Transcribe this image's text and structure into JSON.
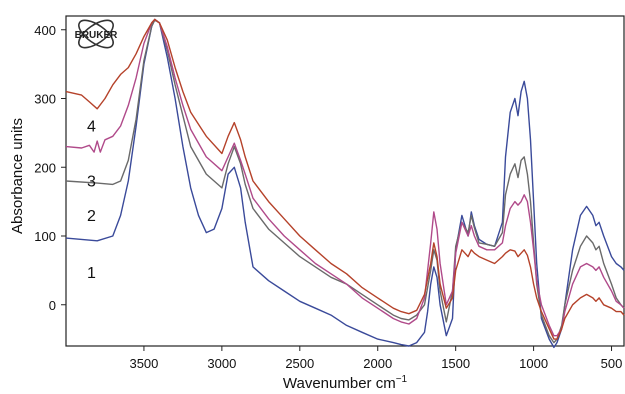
{
  "chart_data": {
    "type": "line",
    "title": "",
    "xlabel": "Wavenumber cm",
    "xlabel_sup": "−1",
    "ylabel": "Absorbance units",
    "xlim": [
      4000,
      420
    ],
    "ylim": [
      -60,
      420
    ],
    "x_reversed": true,
    "grid": false,
    "legend": "inline number labels at left",
    "xticks": [
      3500,
      3000,
      2500,
      2000,
      1500,
      1000,
      500
    ],
    "yticks": [
      0,
      100,
      200,
      300,
      400
    ],
    "logo": {
      "text": "BRUKER"
    },
    "series": [
      {
        "name": "1",
        "color": "#3a4a9a",
        "x": [
          4000,
          3800,
          3700,
          3650,
          3600,
          3550,
          3500,
          3450,
          3430,
          3400,
          3350,
          3300,
          3250,
          3200,
          3150,
          3100,
          3050,
          3000,
          2960,
          2920,
          2880,
          2850,
          2800,
          2700,
          2600,
          2500,
          2400,
          2300,
          2200,
          2100,
          2000,
          1900,
          1850,
          1800,
          1750,
          1700,
          1680,
          1660,
          1640,
          1620,
          1600,
          1560,
          1520,
          1500,
          1460,
          1420,
          1400,
          1380,
          1350,
          1300,
          1250,
          1200,
          1180,
          1150,
          1120,
          1100,
          1080,
          1060,
          1040,
          1020,
          1000,
          980,
          950,
          900,
          870,
          850,
          820,
          800,
          750,
          700,
          660,
          620,
          600,
          580,
          550,
          500,
          470,
          440,
          420
        ],
        "y": [
          97,
          93,
          100,
          130,
          180,
          260,
          350,
          405,
          415,
          410,
          360,
          300,
          230,
          170,
          130,
          105,
          110,
          140,
          190,
          200,
          170,
          120,
          55,
          35,
          20,
          5,
          -5,
          -15,
          -30,
          -40,
          -50,
          -55,
          -58,
          -60,
          -55,
          -40,
          -10,
          30,
          55,
          40,
          0,
          -45,
          -20,
          80,
          130,
          100,
          135,
          115,
          95,
          88,
          85,
          120,
          215,
          280,
          300,
          275,
          310,
          325,
          300,
          240,
          150,
          60,
          -20,
          -50,
          -62,
          -55,
          -35,
          0,
          80,
          130,
          143,
          130,
          115,
          120,
          100,
          70,
          60,
          55,
          50
        ]
      },
      {
        "name": "2",
        "color": "#6a6a6a",
        "x": [
          4000,
          3800,
          3700,
          3650,
          3600,
          3550,
          3500,
          3450,
          3430,
          3400,
          3350,
          3300,
          3250,
          3200,
          3100,
          3000,
          2960,
          2920,
          2880,
          2850,
          2800,
          2700,
          2600,
          2500,
          2400,
          2300,
          2200,
          2100,
          2000,
          1900,
          1850,
          1800,
          1750,
          1700,
          1660,
          1640,
          1620,
          1600,
          1560,
          1520,
          1500,
          1460,
          1420,
          1400,
          1380,
          1350,
          1300,
          1250,
          1200,
          1180,
          1150,
          1120,
          1100,
          1080,
          1060,
          1040,
          1020,
          1000,
          980,
          950,
          900,
          870,
          850,
          820,
          800,
          750,
          700,
          660,
          620,
          600,
          580,
          550,
          500,
          470,
          440,
          420
        ],
        "y": [
          180,
          177,
          175,
          180,
          210,
          270,
          355,
          405,
          414,
          410,
          370,
          320,
          275,
          230,
          190,
          170,
          205,
          230,
          205,
          175,
          140,
          110,
          90,
          70,
          55,
          40,
          30,
          15,
          0,
          -15,
          -20,
          -22,
          -15,
          0,
          50,
          80,
          65,
          20,
          -25,
          20,
          85,
          120,
          105,
          130,
          112,
          90,
          88,
          85,
          105,
          160,
          190,
          205,
          185,
          210,
          215,
          190,
          150,
          90,
          30,
          -15,
          -45,
          -55,
          -50,
          -30,
          0,
          50,
          85,
          100,
          90,
          80,
          85,
          60,
          30,
          10,
          0,
          -5
        ]
      },
      {
        "name": "3",
        "color": "#b04a8a",
        "x": [
          4000,
          3900,
          3850,
          3820,
          3800,
          3780,
          3750,
          3700,
          3650,
          3600,
          3550,
          3500,
          3450,
          3430,
          3400,
          3350,
          3300,
          3250,
          3200,
          3100,
          3000,
          2960,
          2920,
          2880,
          2850,
          2800,
          2700,
          2600,
          2500,
          2400,
          2300,
          2200,
          2100,
          2000,
          1900,
          1850,
          1800,
          1750,
          1700,
          1660,
          1640,
          1620,
          1600,
          1560,
          1520,
          1500,
          1460,
          1420,
          1400,
          1380,
          1350,
          1300,
          1250,
          1200,
          1180,
          1150,
          1120,
          1100,
          1080,
          1060,
          1040,
          1020,
          1000,
          980,
          950,
          900,
          870,
          850,
          820,
          800,
          750,
          700,
          660,
          620,
          600,
          580,
          550,
          500,
          470,
          440,
          420
        ],
        "y": [
          230,
          228,
          232,
          222,
          238,
          222,
          240,
          245,
          260,
          290,
          330,
          380,
          410,
          415,
          410,
          375,
          330,
          290,
          255,
          215,
          195,
          215,
          235,
          210,
          190,
          155,
          125,
          100,
          80,
          60,
          45,
          30,
          10,
          -5,
          -20,
          -25,
          -28,
          -20,
          10,
          90,
          135,
          110,
          60,
          0,
          20,
          75,
          120,
          100,
          115,
          100,
          85,
          80,
          80,
          90,
          115,
          140,
          150,
          145,
          150,
          160,
          150,
          120,
          80,
          35,
          0,
          -30,
          -45,
          -45,
          -35,
          -10,
          30,
          55,
          60,
          55,
          50,
          55,
          40,
          20,
          5,
          0,
          -5
        ]
      },
      {
        "name": "4",
        "color": "#b5422a",
        "x": [
          4000,
          3900,
          3850,
          3800,
          3750,
          3700,
          3650,
          3600,
          3550,
          3500,
          3450,
          3430,
          3400,
          3350,
          3300,
          3250,
          3200,
          3100,
          3000,
          2960,
          2920,
          2880,
          2850,
          2800,
          2700,
          2600,
          2500,
          2400,
          2300,
          2200,
          2100,
          2000,
          1900,
          1850,
          1800,
          1750,
          1700,
          1660,
          1640,
          1620,
          1600,
          1560,
          1520,
          1500,
          1460,
          1420,
          1400,
          1380,
          1350,
          1300,
          1250,
          1200,
          1180,
          1150,
          1120,
          1100,
          1080,
          1060,
          1040,
          1020,
          1000,
          980,
          950,
          900,
          870,
          850,
          820,
          800,
          750,
          700,
          660,
          620,
          600,
          580,
          550,
          500,
          470,
          440,
          420
        ],
        "y": [
          310,
          305,
          295,
          285,
          300,
          320,
          335,
          345,
          365,
          390,
          410,
          415,
          410,
          385,
          345,
          310,
          280,
          245,
          220,
          245,
          265,
          240,
          215,
          180,
          150,
          125,
          100,
          80,
          60,
          45,
          25,
          10,
          -5,
          -10,
          -13,
          -8,
          15,
          60,
          90,
          70,
          30,
          -5,
          10,
          50,
          80,
          70,
          80,
          75,
          70,
          65,
          60,
          70,
          75,
          80,
          78,
          70,
          75,
          80,
          72,
          55,
          30,
          10,
          -10,
          -35,
          -50,
          -50,
          -35,
          -20,
          0,
          10,
          15,
          10,
          5,
          10,
          0,
          -5,
          -10,
          -10,
          -15
        ]
      }
    ]
  }
}
